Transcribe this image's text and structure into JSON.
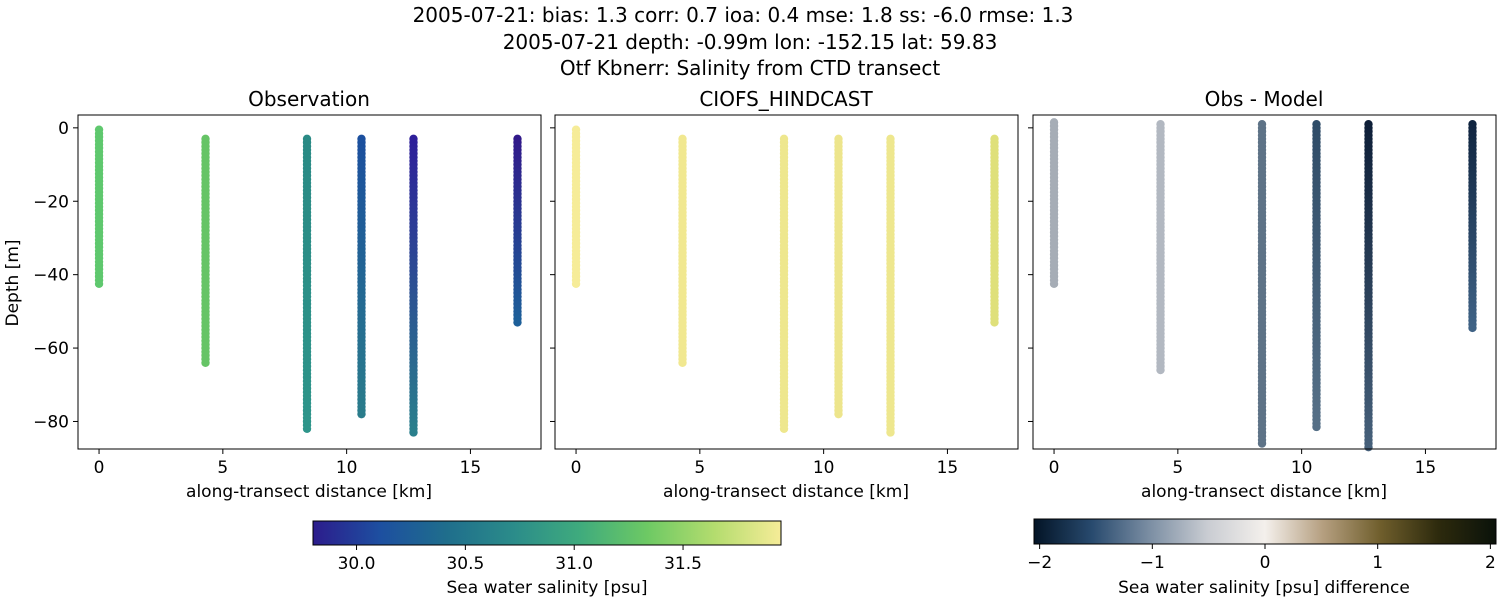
{
  "figure": {
    "title_lines": [
      "2005-07-21: bias: 1.3  corr: 0.7  ioa: 0.4  mse: 1.8  ss: -6.0  rmse: 1.3",
      "2005-07-21 depth: -0.99m lon: -152.15 lat: 59.83",
      "Otf Kbnerr: Salinity from CTD transect"
    ]
  },
  "chart_data": [
    {
      "type": "scatter",
      "title": "Observation",
      "xlabel": "along-transect distance [km]",
      "ylabel": "Depth [m]",
      "xlim": [
        -0.85,
        17.85
      ],
      "ylim": [
        -87.5,
        3.5
      ],
      "xticks": [
        0,
        5,
        10,
        15
      ],
      "yticks": [
        0,
        -20,
        -40,
        -60,
        -80
      ],
      "colormap": "salinity",
      "series": [
        {
          "x": 0.0,
          "top": -0.5,
          "bottom": -42.5,
          "color_top": "#5fc86e",
          "color_bottom": "#5fc86e"
        },
        {
          "x": 4.3,
          "top": -3.0,
          "bottom": -64.0,
          "color_top": "#66c466",
          "color_bottom": "#66c466"
        },
        {
          "x": 8.4,
          "top": -3.0,
          "bottom": -82.0,
          "color_top": "#2a8a85",
          "color_bottom": "#2e958a"
        },
        {
          "x": 10.6,
          "top": -3.0,
          "bottom": -78.0,
          "color_top": "#1b4f9e",
          "color_bottom": "#2a7c8b"
        },
        {
          "x": 12.7,
          "top": -3.0,
          "bottom": -83.0,
          "color_top": "#2e1f9a",
          "color_bottom": "#2a7f8c"
        },
        {
          "x": 16.9,
          "top": -3.0,
          "bottom": -53.0,
          "color_top": "#31198a",
          "color_bottom": "#1d5f99"
        }
      ]
    },
    {
      "type": "scatter",
      "title": "CIOFS_HINDCAST",
      "xlabel": "along-transect distance [km]",
      "ylabel": "",
      "xlim": [
        -0.85,
        17.85
      ],
      "ylim": [
        -87.5,
        3.5
      ],
      "xticks": [
        0,
        5,
        10,
        15
      ],
      "yticks": [],
      "colormap": "salinity",
      "series": [
        {
          "x": 0.0,
          "top": -0.5,
          "bottom": -42.5,
          "color_top": "#f6ec98",
          "color_bottom": "#f6ec98"
        },
        {
          "x": 4.3,
          "top": -3.0,
          "bottom": -64.0,
          "color_top": "#f1e890",
          "color_bottom": "#f1e890"
        },
        {
          "x": 8.4,
          "top": -3.0,
          "bottom": -82.0,
          "color_top": "#eee78e",
          "color_bottom": "#eee78e"
        },
        {
          "x": 10.6,
          "top": -3.0,
          "bottom": -78.0,
          "color_top": "#ede58c",
          "color_bottom": "#ede58c"
        },
        {
          "x": 12.7,
          "top": -3.0,
          "bottom": -83.0,
          "color_top": "#eee78e",
          "color_bottom": "#eee78e"
        },
        {
          "x": 16.9,
          "top": -3.0,
          "bottom": -53.0,
          "color_top": "#dfe07a",
          "color_bottom": "#dfe07a"
        }
      ]
    },
    {
      "type": "scatter",
      "title": "Obs - Model",
      "xlabel": "along-transect distance [km]",
      "ylabel": "",
      "xlim": [
        -0.85,
        17.85
      ],
      "ylim": [
        -87.5,
        3.5
      ],
      "xticks": [
        0,
        5,
        10,
        15
      ],
      "yticks": [],
      "colormap": "difference",
      "series": [
        {
          "x": 0.0,
          "top": 1.5,
          "bottom": -42.5,
          "color_top": "#a6adb6",
          "color_bottom": "#a6adb6"
        },
        {
          "x": 4.3,
          "top": 1.0,
          "bottom": -66.0,
          "color_top": "#b2b8c1",
          "color_bottom": "#b2b8c1"
        },
        {
          "x": 8.4,
          "top": 1.0,
          "bottom": -86.0,
          "color_top": "#5e7387",
          "color_bottom": "#5e7387"
        },
        {
          "x": 10.6,
          "top": 1.0,
          "bottom": -81.5,
          "color_top": "#2f4c68",
          "color_bottom": "#567087"
        },
        {
          "x": 12.7,
          "top": 1.0,
          "bottom": -87.0,
          "color_top": "#0e1f38",
          "color_bottom": "#46607a"
        },
        {
          "x": 16.9,
          "top": 1.0,
          "bottom": -54.5,
          "color_top": "#0f243f",
          "color_bottom": "#3f6285"
        }
      ]
    }
  ],
  "colorbars": [
    {
      "label": "Sea water salinity [psu]",
      "range": [
        29.8,
        31.95
      ],
      "ticks": [
        "30.0",
        "30.5",
        "31.0",
        "31.5"
      ],
      "tick_values": [
        30.0,
        30.5,
        31.0,
        31.5
      ],
      "colors": [
        "#2c1c8c",
        "#1d4fa0",
        "#1f6e8c",
        "#2b8c8a",
        "#3fab7d",
        "#6dc964",
        "#b3dc6e",
        "#f6ec98"
      ]
    },
    {
      "label": "Sea water salinity [psu] difference",
      "range": [
        -2.05,
        2.05
      ],
      "ticks": [
        "−2",
        "−1",
        "0",
        "1",
        "2"
      ],
      "tick_values": [
        -2,
        -1,
        0,
        1,
        2
      ],
      "colors": [
        "#031426",
        "#284a6e",
        "#7b8ea3",
        "#c9ccd2",
        "#f4f0ec",
        "#b59f80",
        "#6f5e2c",
        "#2d2a0d",
        "#0a120a"
      ]
    }
  ]
}
